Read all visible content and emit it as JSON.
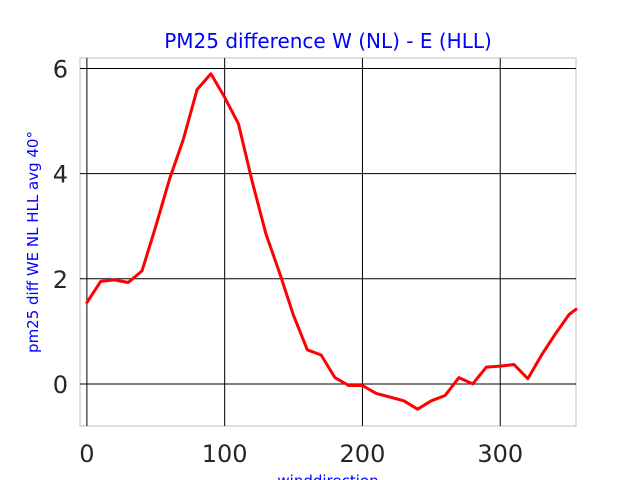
{
  "chart_data": {
    "type": "line",
    "title": "PM25 difference W (NL) - E (HLL)",
    "xlabel": "winddirection",
    "ylabel": "pm25 diff WE NL HLL avg 40°",
    "xlim": [
      -5,
      355
    ],
    "ylim": [
      -0.8,
      6.2
    ],
    "xticks": [
      0,
      100,
      200,
      300
    ],
    "yticks": [
      0,
      2,
      4,
      6
    ],
    "grid": true,
    "series": [
      {
        "color": "#ff0000",
        "x": [
          0,
          10,
          20,
          30,
          40,
          50,
          60,
          70,
          80,
          90,
          100,
          110,
          120,
          130,
          140,
          150,
          160,
          170,
          180,
          190,
          200,
          210,
          220,
          230,
          240,
          250,
          260,
          270,
          280,
          290,
          300,
          310,
          320,
          330,
          340,
          350,
          355
        ],
        "values": [
          1.55,
          1.95,
          1.98,
          1.93,
          2.15,
          3.0,
          3.9,
          4.65,
          5.6,
          5.9,
          5.45,
          4.95,
          3.85,
          2.85,
          2.1,
          1.3,
          0.65,
          0.55,
          0.12,
          -0.03,
          -0.03,
          -0.18,
          -0.25,
          -0.32,
          -0.48,
          -0.32,
          -0.22,
          0.12,
          0.0,
          0.32,
          0.34,
          0.37,
          0.1,
          0.55,
          0.95,
          1.32,
          1.42
        ]
      }
    ]
  }
}
